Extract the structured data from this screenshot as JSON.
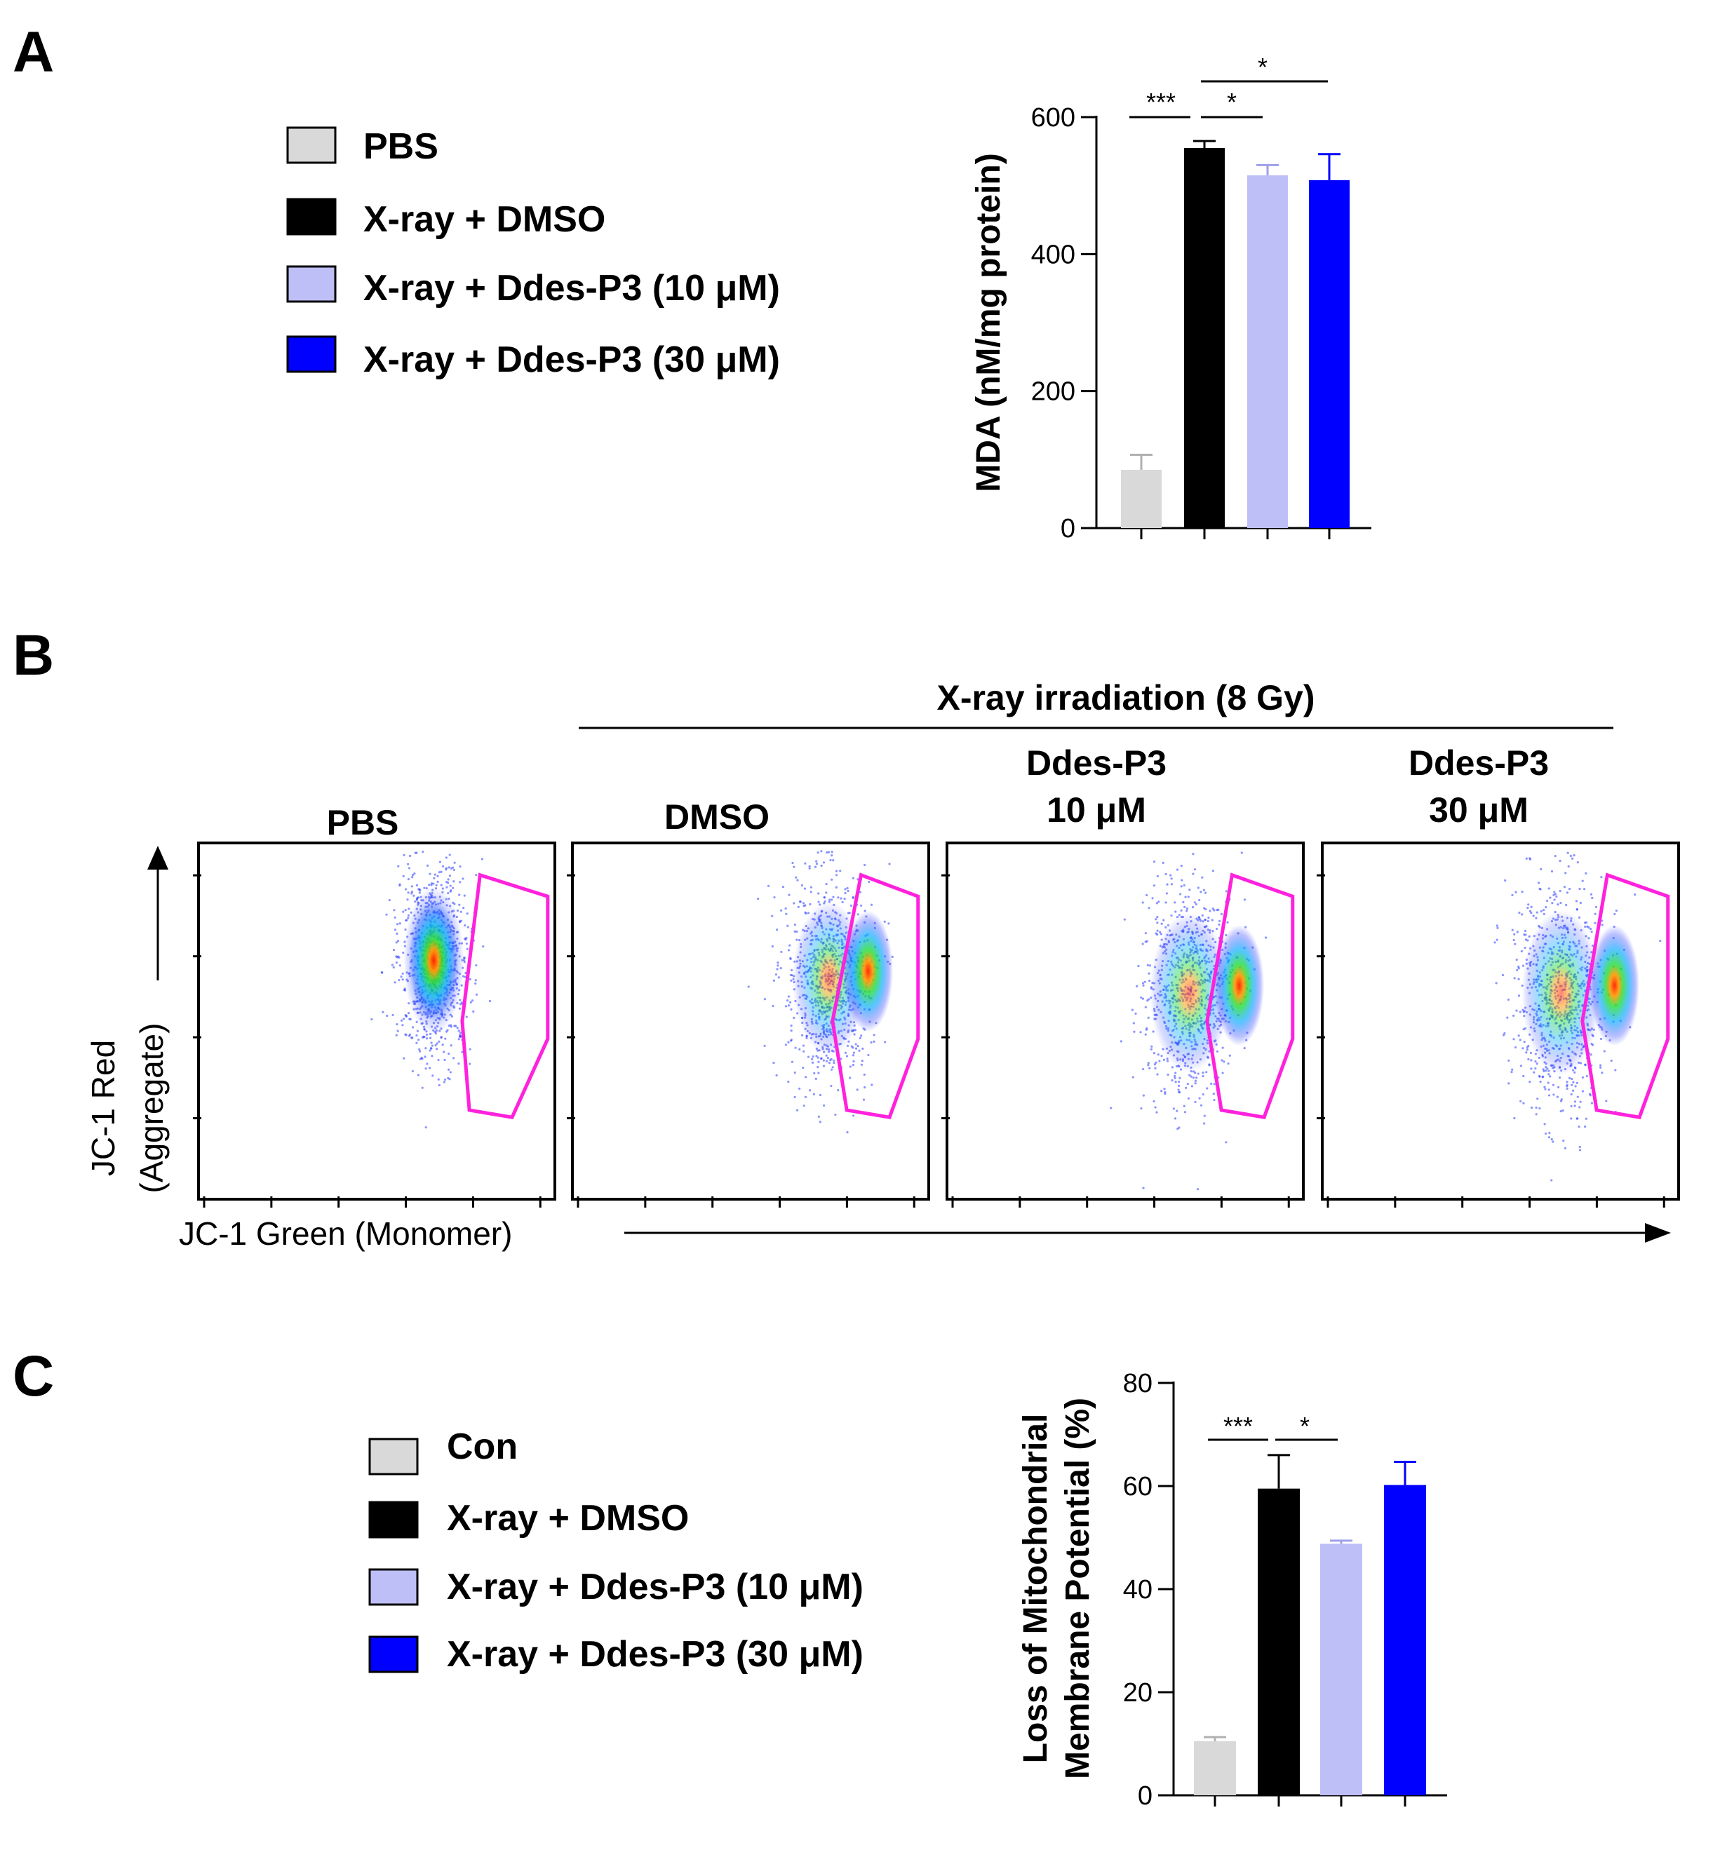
{
  "panels": {
    "a": "A",
    "b": "B",
    "c": "C"
  },
  "colors": {
    "pbs": "#d9d9d9",
    "dmso": "#000000",
    "p3_10": "#bfbff7",
    "p3_30": "#0000ff",
    "gate": "#ff22dd"
  },
  "legend_a": {
    "items": [
      "PBS",
      "X-ray + DMSO",
      "X-ray + Ddes-P3 (10 μM)",
      "X-ray + Ddes-P3 (30 μM)"
    ]
  },
  "legend_c": {
    "items": [
      "Con",
      "X-ray + DMSO",
      "X-ray + Ddes-P3 (10 μM)",
      "X-ray + Ddes-P3 (30 μM)"
    ]
  },
  "flow": {
    "group_title": "X-ray irradiation (8 Gy)",
    "sample_titles": {
      "pbs": "PBS",
      "dmso": "DMSO",
      "p3_10_line1": "Ddes-P3",
      "p3_10_line2": "10 μM",
      "p3_30_line1": "Ddes-P3",
      "p3_30_line2": "30 μM"
    },
    "ylabel_line1": "JC-1 Red",
    "ylabel_line2": "(Aggregate)",
    "xlabel": "JC-1 Green (Monomer)"
  },
  "chart_data": [
    {
      "id": "A",
      "type": "bar",
      "title": "",
      "categories": [
        "PBS",
        "X-ray + DMSO",
        "X-ray + Ddes-P3 (10 μM)",
        "X-ray + Ddes-P3 (30 μM)"
      ],
      "values": [
        85,
        555,
        515,
        508
      ],
      "errors": [
        22,
        10,
        15,
        38
      ],
      "colors": [
        "#d9d9d9",
        "#000000",
        "#bfbff7",
        "#0000ff"
      ],
      "xlabel": "",
      "ylabel": "MDA (nM/mg protein)",
      "ylim": [
        0,
        600
      ],
      "yticks": [
        0,
        200,
        400,
        600
      ],
      "significance": [
        {
          "from": 0,
          "to": 1,
          "label": "***"
        },
        {
          "from": 1,
          "to": 2,
          "label": "*"
        },
        {
          "from": 1,
          "to": 3,
          "label": "*"
        }
      ]
    },
    {
      "id": "C",
      "type": "bar",
      "title": "",
      "categories": [
        "Con",
        "X-ray + DMSO",
        "X-ray + Ddes-P3 (10 μM)",
        "X-ray + Ddes-P3 (30 μM)"
      ],
      "values": [
        10.5,
        59.5,
        48.8,
        60.2
      ],
      "errors": [
        0.8,
        6.5,
        0.6,
        4.5
      ],
      "colors": [
        "#d9d9d9",
        "#000000",
        "#bfbff7",
        "#0000ff"
      ],
      "xlabel": "",
      "ylabel": "Loss of Mitochondrial Membrane Potential (%)",
      "ylabel_line1": "Loss of Mitochondrial",
      "ylabel_line2": "Membrane Potential (%)",
      "ylim": [
        0,
        80
      ],
      "yticks": [
        0,
        20,
        40,
        60,
        80
      ],
      "significance": [
        {
          "from": 0,
          "to": 1,
          "label": "***"
        },
        {
          "from": 1,
          "to": 2,
          "label": "*"
        }
      ]
    }
  ]
}
